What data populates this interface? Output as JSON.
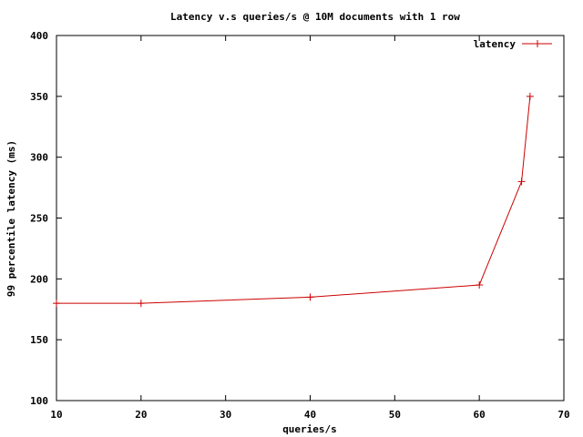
{
  "chart_data": {
    "type": "line",
    "title": "Latency v.s queries/s @ 10M documents with 1 row",
    "xlabel": "queries/s",
    "ylabel": "99 percentile latency (ms)",
    "xlim": [
      10,
      70
    ],
    "ylim": [
      100,
      400
    ],
    "xticks": [
      "10",
      "20",
      "30",
      "40",
      "50",
      "60",
      "70"
    ],
    "yticks": [
      "100",
      "150",
      "200",
      "250",
      "300",
      "350",
      "400"
    ],
    "grid": false,
    "legend": "top-right",
    "color": "#cc0000",
    "series": [
      {
        "name": "latency",
        "x": [
          10,
          20,
          40,
          60,
          65,
          66
        ],
        "y": [
          180,
          180,
          185,
          195,
          280,
          350
        ]
      }
    ]
  }
}
